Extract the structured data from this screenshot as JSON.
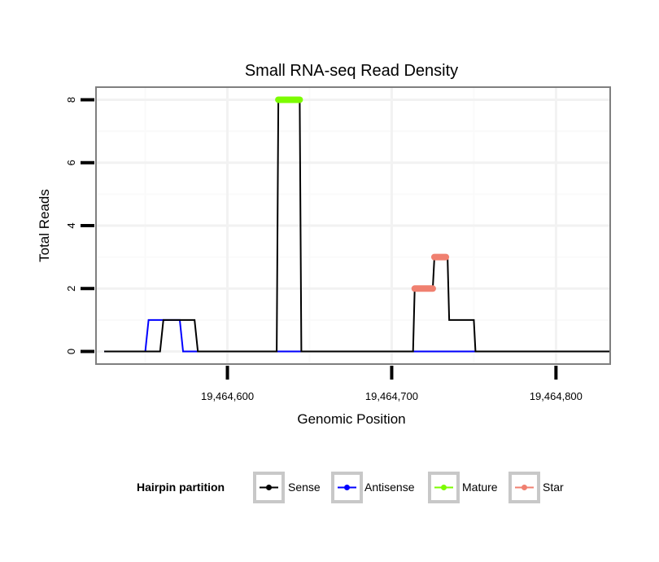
{
  "chart_data": {
    "type": "line",
    "title": "Small RNA-seq Read Density",
    "xlabel": "Genomic Position",
    "ylabel": "Total Reads",
    "xlim": [
      19464520,
      19464833
    ],
    "ylim": [
      -0.4,
      8.4
    ],
    "x_ticks": [
      19464600,
      19464700,
      19464800
    ],
    "x_tick_labels": [
      "19,464,600",
      "19,464,700",
      "19,464,800"
    ],
    "y_ticks": [
      0,
      2,
      4,
      6,
      8
    ],
    "y_tick_labels": [
      "0",
      "2",
      "4",
      "6",
      "8"
    ],
    "grid": true,
    "legend": {
      "title": "Hairpin partition",
      "position": "bottom",
      "entries": [
        {
          "label": "Sense",
          "color": "#000000"
        },
        {
          "label": "Antisense",
          "color": "#0000ff"
        },
        {
          "label": "Mature",
          "color": "#7cfc00"
        },
        {
          "label": "Star",
          "color": "#f08070"
        }
      ]
    },
    "series": [
      {
        "name": "Antisense",
        "kind": "line",
        "color": "#0000ff",
        "x": [
          19464525,
          19464550,
          19464552,
          19464571,
          19464573,
          19464833
        ],
        "y": [
          0,
          0,
          1,
          1,
          0,
          0
        ]
      },
      {
        "name": "Sense",
        "kind": "line",
        "color": "#000000",
        "x": [
          19464525,
          19464559,
          19464561,
          19464580,
          19464582,
          19464630,
          19464631,
          19464644,
          19464645,
          19464713,
          19464714,
          19464725,
          19464726,
          19464734,
          19464735,
          19464750,
          19464751,
          19464833
        ],
        "y": [
          0,
          0,
          1,
          1,
          0,
          0,
          8,
          8,
          0,
          0,
          2,
          2,
          3,
          3,
          1,
          1,
          0,
          0
        ]
      },
      {
        "name": "Mature",
        "kind": "segment",
        "color": "#7cfc00",
        "x": [
          19464631,
          19464644
        ],
        "y": [
          8,
          8
        ]
      },
      {
        "name": "Star",
        "kind": "segment",
        "color": "#f08070",
        "x": [
          19464714,
          19464725
        ],
        "y": [
          2,
          2
        ]
      },
      {
        "name": "Star",
        "kind": "segment",
        "color": "#f08070",
        "x": [
          19464726,
          19464733
        ],
        "y": [
          3,
          3
        ]
      }
    ]
  }
}
